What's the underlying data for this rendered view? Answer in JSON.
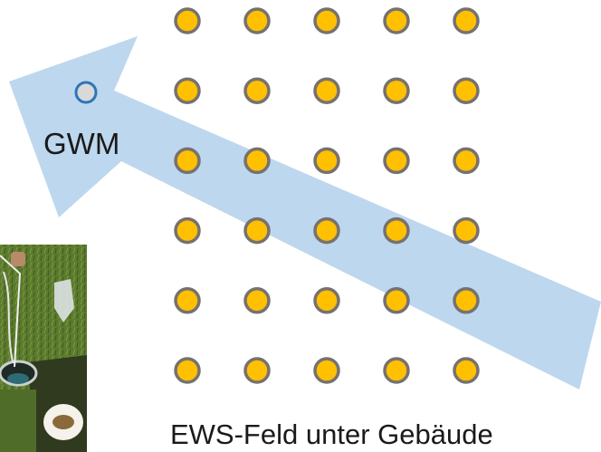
{
  "monitoring_well": {
    "label": "GWM"
  },
  "borehole_field": {
    "caption": "EWS-Feld unter Gebäude",
    "rows": 6,
    "columns": 5
  },
  "colors": {
    "borehole_fill": "#FFC000",
    "borehole_stroke": "#767171",
    "well_fill": "#D9D9D9",
    "well_stroke": "#2E75B6",
    "flow_arrow": "#BDD7EE"
  },
  "icons": {
    "flow_direction": "groundwater-flow-arrow-icon",
    "photo": "borehole-photo"
  }
}
